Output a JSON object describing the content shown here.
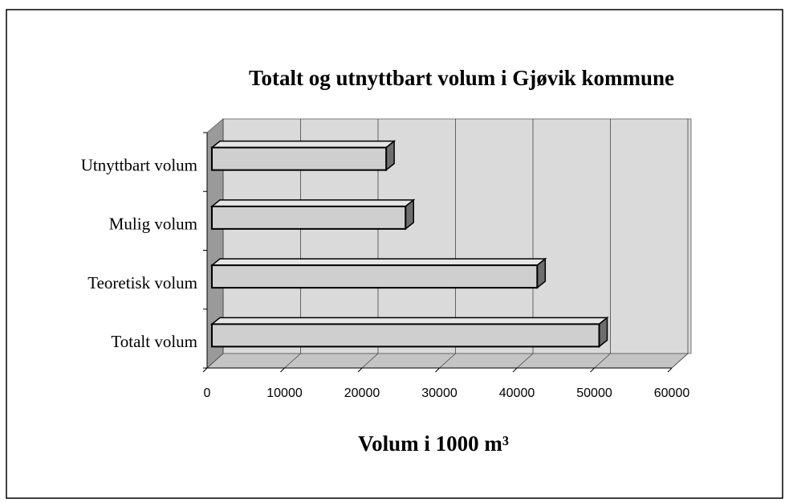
{
  "chart_data": {
    "type": "bar",
    "orientation": "horizontal",
    "title": "Totalt og utnyttbart volum i Gjøvik kommune",
    "categories": [
      "Totalt volum",
      "Teoretisk volum",
      "Mulig volum",
      "Utnyttbart volum"
    ],
    "values": [
      50000,
      42000,
      25000,
      22500
    ],
    "color": "#cfcfcf",
    "xlabel": "Volum i 1000 m³",
    "xlim": [
      0,
      60000
    ],
    "xticks": [
      0,
      10000,
      20000,
      30000,
      40000,
      50000,
      60000
    ],
    "grid": true
  }
}
